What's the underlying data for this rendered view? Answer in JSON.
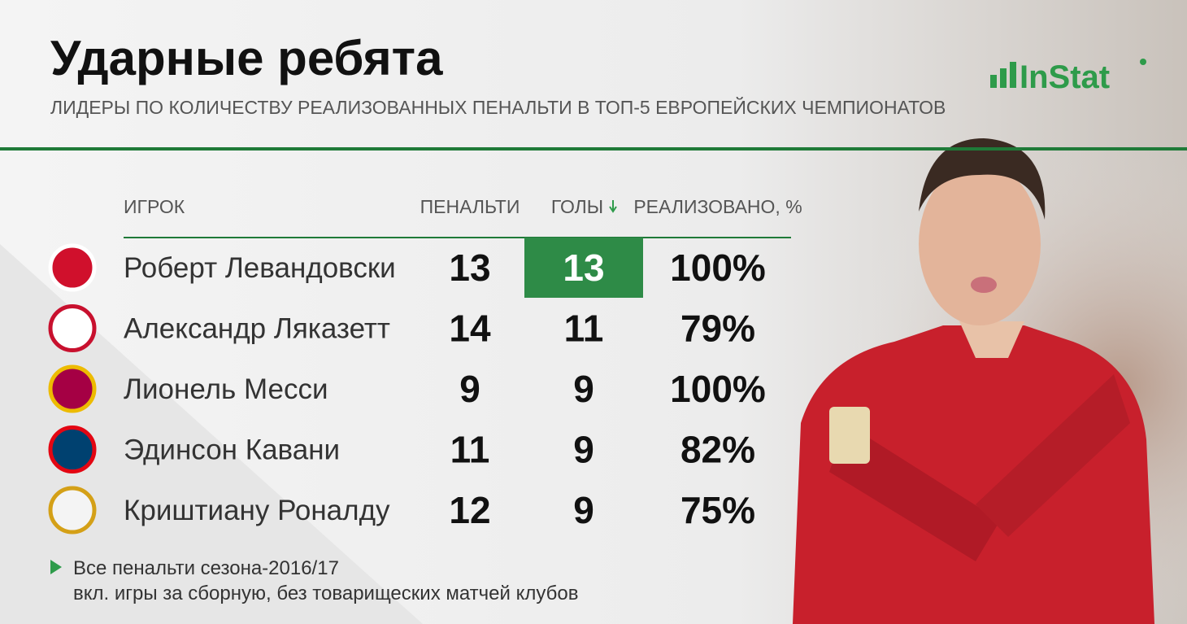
{
  "header": {
    "title": "Ударные ребята",
    "subtitle": "ЛИДЕРЫ ПО КОЛИЧЕСТВУ РЕАЛИЗОВАННЫХ ПЕНАЛЬТИ В ТОП-5 ЕВРОПЕЙСКИХ ЧЕМПИОНАТОВ",
    "logo": "InStat"
  },
  "table": {
    "columns": [
      "ИГРОК",
      "ПЕНАЛЬТИ",
      "ГОЛЫ",
      "РЕАЛИЗОВАНО, %"
    ],
    "rows": [
      [
        "Роберт Левандовски",
        13,
        13,
        "100%"
      ],
      [
        "Александр Ляказетт",
        14,
        11,
        "79%"
      ],
      [
        "Лионель Месси",
        9,
        9,
        "100%"
      ],
      [
        "Эдинсон Кавани",
        11,
        9,
        "82%"
      ],
      [
        "Криштиану Роналду",
        12,
        9,
        "75%"
      ]
    ]
  },
  "footnote": [
    "Все пенальти сезона-2016/17",
    "вкл. игры за сборную, без товарищеских матчей клубов"
  ]
}
